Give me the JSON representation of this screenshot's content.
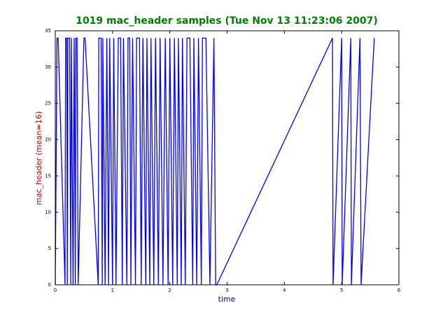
{
  "chart_data": {
    "type": "line",
    "title": "1019 mac_header samples (Tue Nov 13 11:23:06 2007)",
    "x_label": "time",
    "y_label": "mac_header (mean=16)",
    "x": [
      0.0,
      0.03,
      0.05,
      0.17,
      0.18,
      0.2,
      0.21,
      0.22,
      0.25,
      0.27,
      0.28,
      0.31,
      0.33,
      0.35,
      0.36,
      0.38,
      0.4,
      0.5,
      0.52,
      0.75,
      0.76,
      0.8,
      0.82,
      0.83,
      0.87,
      0.9,
      0.93,
      0.95,
      1.0,
      1.02,
      1.06,
      1.1,
      1.14,
      1.17,
      1.19,
      1.25,
      1.27,
      1.3,
      1.32,
      1.35,
      1.4,
      1.42,
      1.47,
      1.5,
      1.53,
      1.58,
      1.6,
      1.65,
      1.67,
      1.72,
      1.75,
      1.8,
      1.83,
      1.88,
      1.92,
      1.97,
      2.0,
      2.05,
      2.08,
      2.13,
      2.15,
      2.2,
      2.22,
      2.27,
      2.3,
      2.35,
      2.4,
      2.42,
      2.47,
      2.5,
      2.55,
      2.57,
      2.63,
      2.7,
      2.77,
      2.8,
      2.82,
      4.84,
      4.85,
      5.0,
      5.01,
      5.16,
      5.17,
      5.32,
      5.34,
      5.57
    ],
    "series": [
      {
        "name": "mac_header",
        "color": "#0000ff",
        "values": [
          0,
          34,
          34,
          0,
          34,
          34,
          0,
          34,
          34,
          0,
          34,
          0,
          34,
          0,
          34,
          34,
          0,
          34,
          34,
          0,
          34,
          34,
          0,
          34,
          0,
          34,
          0,
          34,
          0,
          34,
          0,
          34,
          34,
          0,
          34,
          0,
          34,
          34,
          0,
          34,
          0,
          34,
          34,
          0,
          34,
          0,
          34,
          0,
          34,
          0,
          34,
          0,
          34,
          0,
          34,
          0,
          34,
          0,
          34,
          0,
          34,
          0,
          34,
          0,
          34,
          34,
          0,
          34,
          0,
          34,
          0,
          34,
          34,
          0,
          34,
          0,
          0,
          34,
          0,
          34,
          0,
          34,
          0,
          34,
          0,
          34
        ]
      }
    ],
    "xlim": [
      0,
      6
    ],
    "ylim": [
      0,
      35
    ],
    "xticks": [
      0,
      1,
      2,
      3,
      4,
      5,
      6
    ],
    "yticks": [
      0,
      5,
      10,
      15,
      20,
      25,
      30,
      35
    ],
    "title_color": "#008000",
    "x_label_color": "#0000cc",
    "y_label_color": "#cc0000"
  }
}
